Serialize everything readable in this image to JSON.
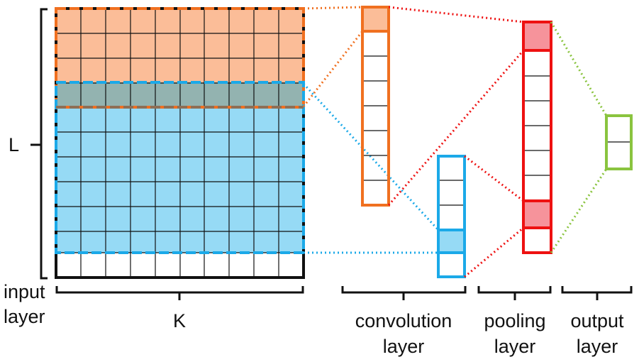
{
  "labels": {
    "L": "L",
    "input_line1": "input",
    "input_line2": "layer",
    "K": "K",
    "conv_line1": "convolution",
    "conv_line2": "layer",
    "pool_line1": "pooling",
    "pool_line2": "layer",
    "out_line1": "output",
    "out_line2": "layer"
  },
  "colors": {
    "orange_stroke": "#F07020",
    "orange_fill": "#FBBD98",
    "blue_stroke": "#1BA9E8",
    "blue_fill": "#96DAF5",
    "overlap_fill": "#93B3B0",
    "red_stroke": "#EE1111",
    "red_fill": "#F6939B",
    "green_stroke": "#8AC43F",
    "grid_line": "#111111"
  },
  "structure": {
    "input_grid": {
      "columns": 10,
      "rows": 10
    },
    "convolution_cells_per_column": 7,
    "pooling_cells": 8,
    "output_cells": 2
  }
}
